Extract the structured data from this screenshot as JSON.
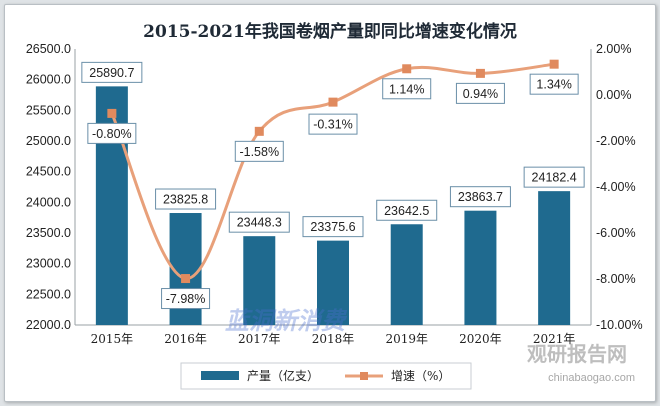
{
  "chart_data": {
    "type": "bar+line",
    "title": "2015-2021年我国卷烟产量即同比增速变化情况",
    "categories": [
      "2015年",
      "2016年",
      "2017年",
      "2018年",
      "2019年",
      "2020年",
      "2021年"
    ],
    "series": [
      {
        "name": "产量（亿支）",
        "type": "bar",
        "axis": "left",
        "values": [
          25890.7,
          23825.8,
          23448.3,
          23375.6,
          23642.5,
          23863.7,
          24182.4
        ],
        "labels": [
          "25890.7",
          "23825.8",
          "23448.3",
          "23375.6",
          "23642.5",
          "23863.7",
          "24182.4"
        ]
      },
      {
        "name": "增速（%）",
        "type": "line",
        "axis": "right",
        "values": [
          -0.8,
          -7.98,
          -1.58,
          -0.31,
          1.14,
          0.94,
          1.34
        ],
        "labels": [
          "-0.80%",
          "-7.98%",
          "-1.58%",
          "-0.31%",
          "1.14%",
          "0.94%",
          "1.34%"
        ]
      }
    ],
    "y_left": {
      "range": [
        22000,
        26500
      ],
      "ticks": [
        "26500.0",
        "26000.0",
        "25500.0",
        "25000.0",
        "24500.0",
        "24000.0",
        "23500.0",
        "23000.0",
        "22500.0",
        "22000.0"
      ]
    },
    "y_right": {
      "range": [
        -10,
        2
      ],
      "ticks": [
        "2.00%",
        "0.00%",
        "-2.00%",
        "-4.00%",
        "-6.00%",
        "-8.00%",
        "-10.00%"
      ]
    },
    "grid": false,
    "legend_position": "bottom",
    "colors": {
      "bar": "#1f6a8f",
      "line": "#e8a07a",
      "marker": "#e08a5e",
      "box_border": "#6a8fa8"
    }
  },
  "watermarks": {
    "center": "蓝洞新消费",
    "corner": "观研报告网",
    "corner_url": "chinabaogao.com"
  }
}
